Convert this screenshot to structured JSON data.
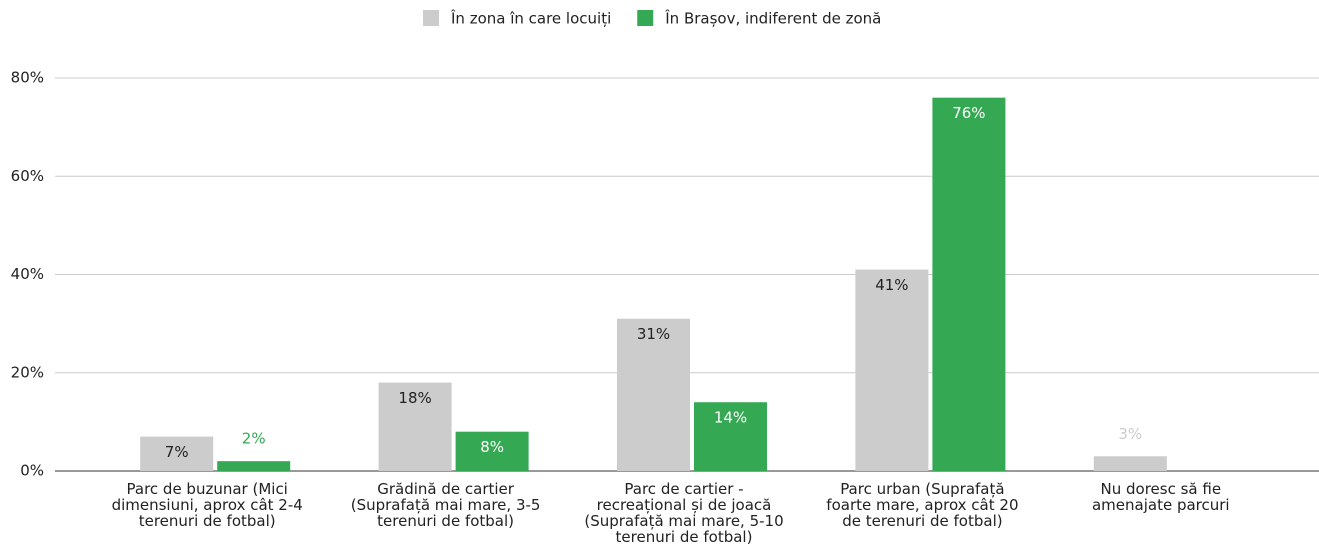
{
  "chart_data": {
    "type": "bar",
    "categories": [
      "Parc de buzunar (Mici dimensiuni, aprox cât 2-4 terenuri de fotbal)",
      "Grădină de cartier (Suprafață mai mare, 3-5 terenuri de fotbal)",
      "Parc de cartier - recreațional și de joacă (Suprafață mai mare, 5-10 terenuri de fotbal)",
      "Parc urban (Suprafață foarte mare, aprox cât 20 de terenuri de fotbal)",
      "Nu doresc să fie amenajate parcuri"
    ],
    "series": [
      {
        "name": "În zona în care locuiți",
        "color": "#cccccc",
        "values": [
          7,
          18,
          31,
          41,
          3
        ],
        "value_labels": [
          "7%",
          "18%",
          "31%",
          "41%",
          "3%"
        ]
      },
      {
        "name": "În Brașov, indiferent de zonă",
        "color": "#34a853",
        "values": [
          2,
          8,
          14,
          76,
          null
        ],
        "value_labels": [
          "2%",
          "8%",
          "14%",
          "76%",
          null
        ]
      }
    ],
    "ylim": [
      0,
      80
    ],
    "yticks": [
      {
        "value": 0,
        "label": "0%"
      },
      {
        "value": 20,
        "label": "20%"
      },
      {
        "value": 40,
        "label": "40%"
      },
      {
        "value": 60,
        "label": "60%"
      },
      {
        "value": 80,
        "label": "80%"
      }
    ],
    "grid": true,
    "legend": "top"
  }
}
